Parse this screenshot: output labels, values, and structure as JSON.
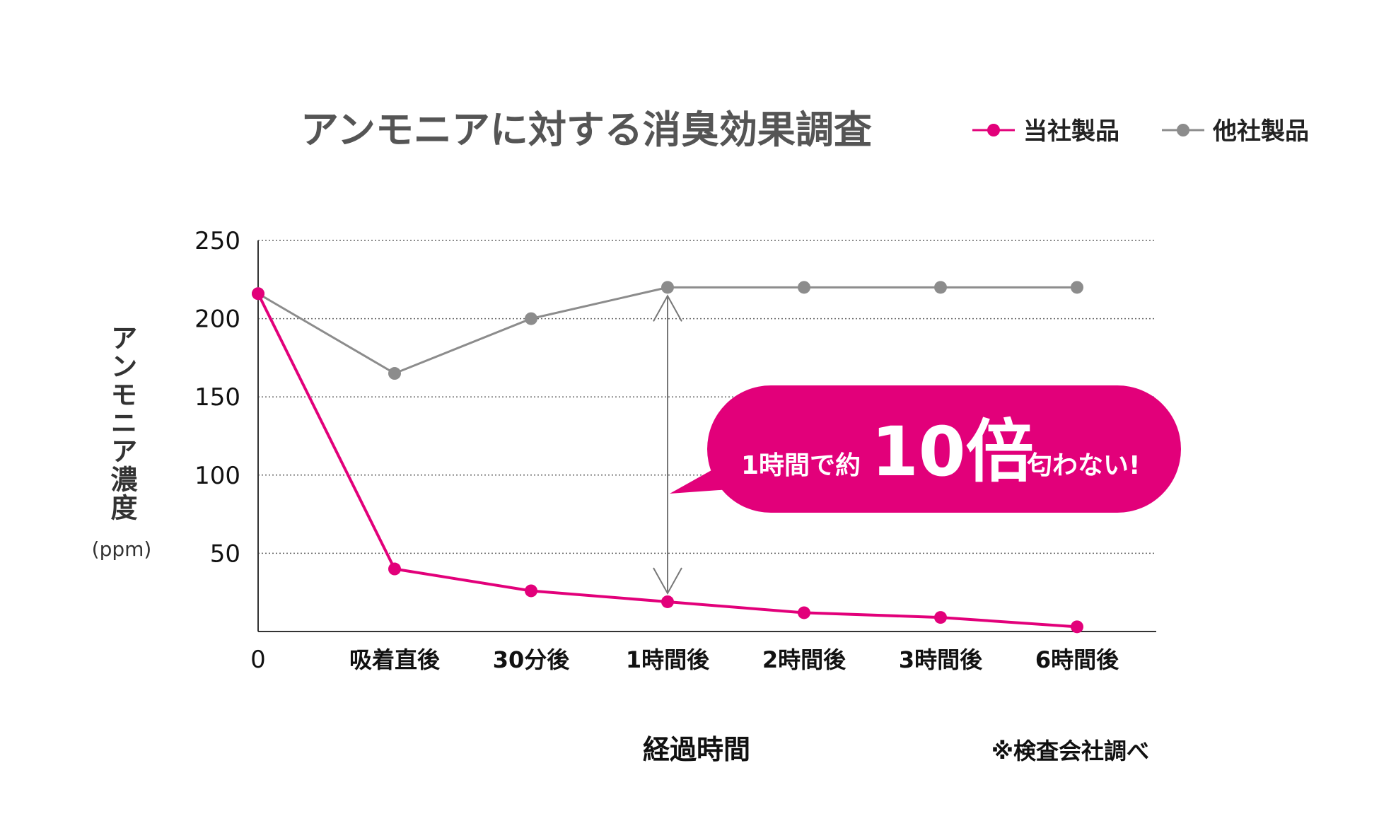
{
  "chart_data": {
    "type": "line",
    "title": "アンモニアに対する消臭効果調査",
    "categories": [
      "0",
      "吸着直後",
      "30分後",
      "1時間後",
      "2時間後",
      "3時間後",
      "6時間後"
    ],
    "ylabel": "アンモニア濃度",
    "yunit": "(ppm)",
    "xlabel": "経過時間",
    "ylim": [
      0,
      250
    ],
    "yticks": [
      50,
      100,
      150,
      200,
      250
    ],
    "grid": true,
    "legend_position": "top-right",
    "series": [
      {
        "name": "当社製品",
        "color": "#e2007a",
        "values": [
          216,
          40,
          26,
          19,
          12,
          9,
          3
        ]
      },
      {
        "name": "他社製品",
        "color": "#8c8c8c",
        "values": [
          216,
          165,
          200,
          220,
          220,
          220,
          220
        ]
      }
    ],
    "callout": {
      "pre": "1時間で約",
      "big": "10倍",
      "post": "匂わない!"
    },
    "note": "※検査会社調べ"
  }
}
